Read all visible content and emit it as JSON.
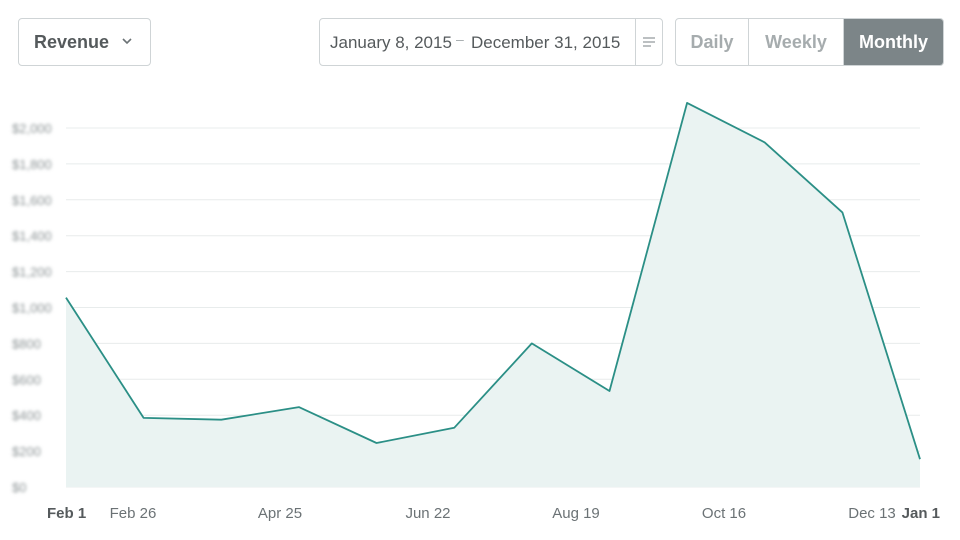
{
  "controls": {
    "metric": {
      "label": "Revenue",
      "icon": "chevron-down-icon"
    },
    "date_range": {
      "start": "January 8, 2015",
      "separator": "–",
      "end": "December 31, 2015",
      "menu_icon": "menu-lines-icon"
    },
    "period": {
      "options": [
        "Daily",
        "Weekly",
        "Monthly"
      ],
      "selected": "Monthly"
    }
  },
  "colors": {
    "line": "#2b8f86",
    "area": "#eaf3f2",
    "grid": "#e8ecec",
    "selected_segment": "#7c8588"
  },
  "chart_data": {
    "type": "area",
    "x_ticks": [
      "Feb 1",
      "Feb 26",
      "Apr 25",
      "Jun 22",
      "Aug 19",
      "Oct 16",
      "Dec 13",
      "Jan 1"
    ],
    "y_ticks": [
      "$0",
      "$200",
      "$400",
      "$600",
      "$800",
      "$1,000",
      "$1,200",
      "$1,400",
      "$1,600",
      "$1,800",
      "$2,000"
    ],
    "y_tick_labels_blurred": true,
    "ylim": [
      0,
      2000
    ],
    "grid": "horizontal",
    "series": [
      {
        "values": [
          1055,
          385,
          375,
          445,
          245,
          330,
          800,
          535,
          2140,
          1920,
          1530,
          155
        ]
      }
    ]
  }
}
